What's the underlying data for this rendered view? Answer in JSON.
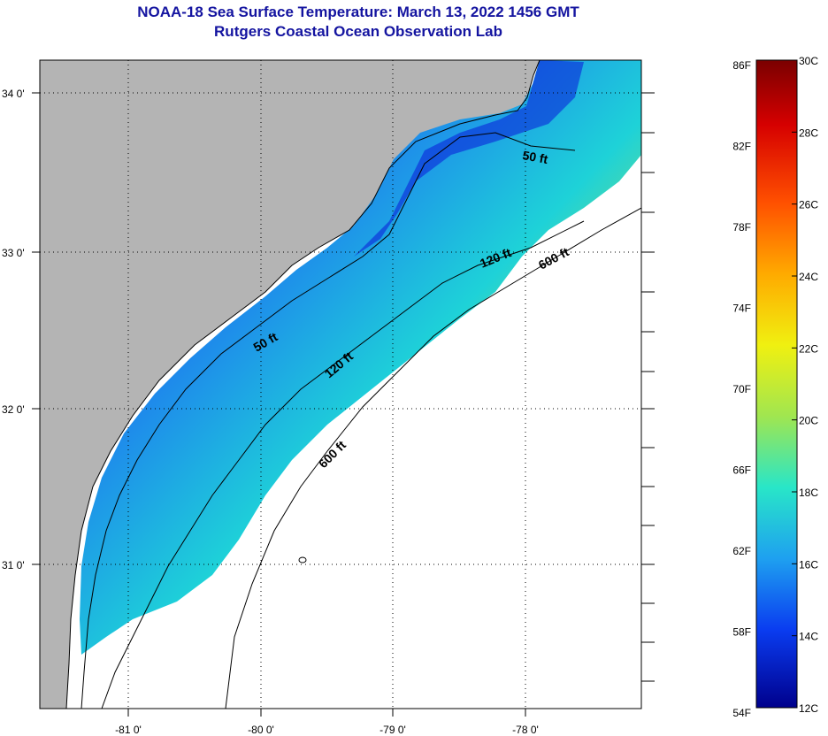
{
  "title": {
    "line1": "NOAA-18 Sea Surface Temperature:  March 13, 2022 1456 GMT",
    "line2": "Rutgers Coastal Ocean Observation Lab"
  },
  "map": {
    "lon_ticks": [
      "-81 0'",
      "-80 0'",
      "-79 0'",
      "-78 0'"
    ],
    "lat_ticks": [
      "34 0'",
      "33 0'",
      "32 0'",
      "31 0'"
    ],
    "contour_labels": [
      {
        "text": "50 ft"
      },
      {
        "text": "50 ft"
      },
      {
        "text": "120 ft"
      },
      {
        "text": "120 ft"
      },
      {
        "text": "600 ft"
      },
      {
        "text": "600 ft"
      }
    ],
    "colors": {
      "land": "#b4b4b4",
      "noData": "#ffffff"
    }
  },
  "colorbar": {
    "f_labels": [
      "86F",
      "82F",
      "78F",
      "74F",
      "70F",
      "66F",
      "62F",
      "58F",
      "54F"
    ],
    "c_labels": [
      "30C",
      "28C",
      "26C",
      "24C",
      "22C",
      "20C",
      "18C",
      "16C",
      "14C",
      "12C"
    ]
  }
}
